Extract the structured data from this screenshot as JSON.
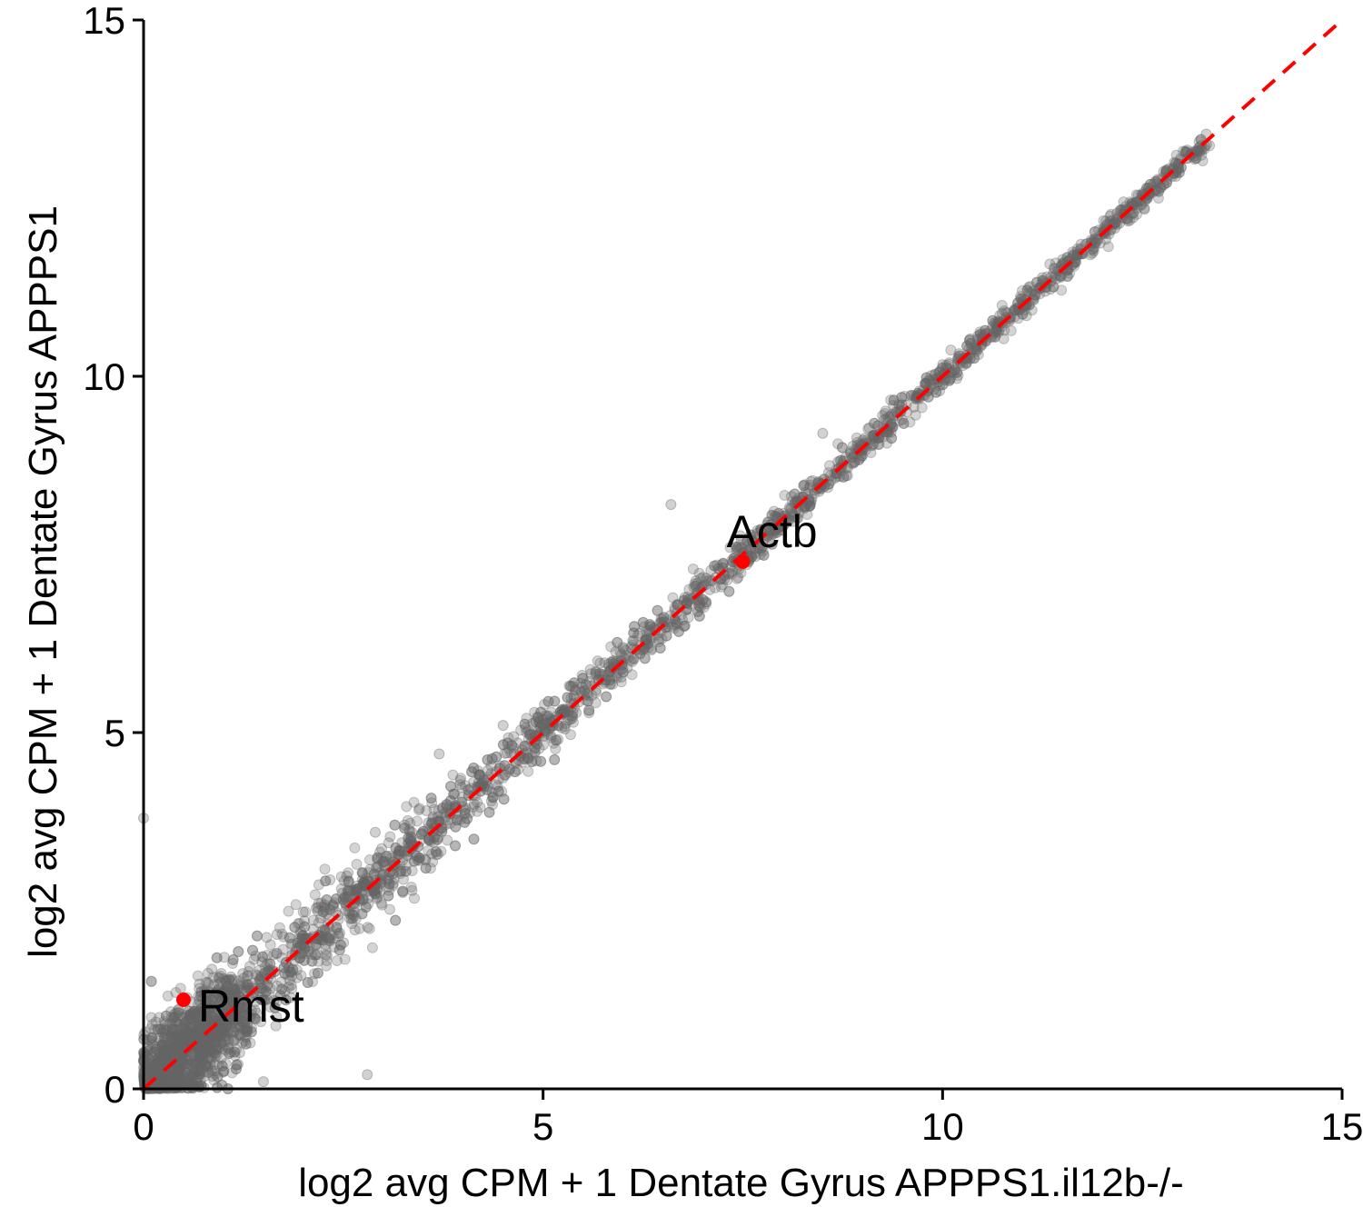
{
  "chart_data": {
    "type": "scatter",
    "title": "",
    "xlabel": "log2 avg CPM + 1 Dentate Gyrus APPPS1.il12b-/-",
    "ylabel": "log2 avg CPM + 1 Dentate Gyrus APPPS1",
    "xlim": [
      0,
      15
    ],
    "ylim": [
      0,
      15
    ],
    "xticks": [
      "0",
      "5",
      "10",
      "15"
    ],
    "yticks": [
      "0",
      "5",
      "10",
      "15"
    ],
    "grid": false,
    "reference_line": {
      "from": [
        0,
        0
      ],
      "to": [
        15,
        15
      ],
      "style": "dashed",
      "color": "#ff0000"
    },
    "point_color": "#666666",
    "highlight_color": "#ff0000",
    "cloud": {
      "description_source": "dense gray cloud of genes along the y = x diagonal",
      "x_range": [
        0,
        13.3
      ],
      "n_points": 3500
    },
    "outliers": [
      {
        "x": 6.6,
        "y": 8.2
      },
      {
        "x": 8.5,
        "y": 9.2
      },
      {
        "x": 3.7,
        "y": 4.7
      },
      {
        "x": 4.5,
        "y": 5.1
      },
      {
        "x": 2.8,
        "y": 0.2
      },
      {
        "x": 1.5,
        "y": 0.1
      },
      {
        "x": 0.0,
        "y": 3.8
      },
      {
        "x": 2.9,
        "y": 3.6
      },
      {
        "x": 13.3,
        "y": 13.4
      },
      {
        "x": 12.9,
        "y": 13.0
      },
      {
        "x": 12.7,
        "y": 12.6
      }
    ],
    "highlights": [
      {
        "label": "Actb",
        "x": 7.5,
        "y": 7.4
      },
      {
        "label": "Rmst",
        "x": 0.5,
        "y": 1.25
      }
    ]
  }
}
